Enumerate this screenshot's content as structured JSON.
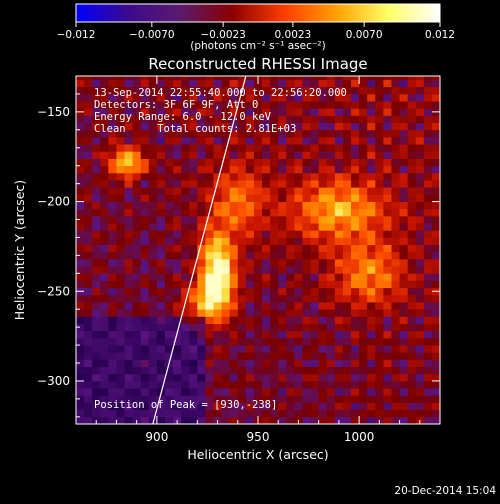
{
  "chart_data": {
    "type": "heatmap",
    "title": "Reconstructed RHESSI Image",
    "xlabel": "Heliocentric X (arcsec)",
    "ylabel": "Heliocentric Y (arcsec)",
    "xlim": [
      860,
      1040
    ],
    "ylim": [
      -324,
      -130
    ],
    "xticks": [
      900,
      950,
      1000
    ],
    "yticks": [
      -150,
      -200,
      -250,
      -300
    ],
    "xtick_labels": [
      "900",
      "950",
      "1000"
    ],
    "ytick_labels": [
      "−150",
      "−200",
      "−250",
      "−300"
    ],
    "grid": false,
    "colorbar": {
      "position": "top",
      "range": [
        -0.012,
        0.012
      ],
      "ticks": [
        -0.012,
        -0.007,
        -0.0023,
        0.0023,
        0.007,
        0.012
      ],
      "tick_labels": [
        "−0.012",
        "−0.0070",
        "−0.0023",
        "0.0023",
        "0.0070",
        "0.012"
      ],
      "unit_label": "(photons cm⁻² s⁻¹ asec⁻²)",
      "colors": [
        "#0000ff",
        "#3c0a8c",
        "#5a1a6e",
        "#8a0000",
        "#ff3c00",
        "#ffa000",
        "#ffff66",
        "#ffffff"
      ]
    },
    "annotations": [
      "13-Sep-2014 22:55:40.000 to 22:56:20.000",
      "Detectors: 3F 6F 9F, Att 0",
      "Energy Range: 6.0 - 12.0 keV",
      "Clean     Total counts: 2.81E+03"
    ],
    "peak_label": "Position of Peak = [930,-238]",
    "peak": {
      "x": 930,
      "y": -238
    },
    "sources": [
      {
        "x": 930,
        "y": -238,
        "amplitude": 1.0,
        "sigma_x": 6,
        "sigma_y": 14
      },
      {
        "x": 925,
        "y": -257,
        "amplitude": 0.55,
        "sigma_x": 8,
        "sigma_y": 8
      },
      {
        "x": 885,
        "y": -178,
        "amplitude": 0.75,
        "sigma_x": 6,
        "sigma_y": 6
      },
      {
        "x": 990,
        "y": -205,
        "amplitude": 0.6,
        "sigma_x": 16,
        "sigma_y": 12
      },
      {
        "x": 1005,
        "y": -240,
        "amplitude": 0.5,
        "sigma_x": 12,
        "sigma_y": 12
      },
      {
        "x": 940,
        "y": -200,
        "amplitude": 0.45,
        "sigma_x": 10,
        "sigma_y": 14
      }
    ],
    "limb": [
      {
        "x": 898,
        "y": -324
      },
      {
        "x": 944,
        "y": -130
      }
    ]
  },
  "footer": {
    "timestamp": "20-Dec-2014 15:04"
  }
}
